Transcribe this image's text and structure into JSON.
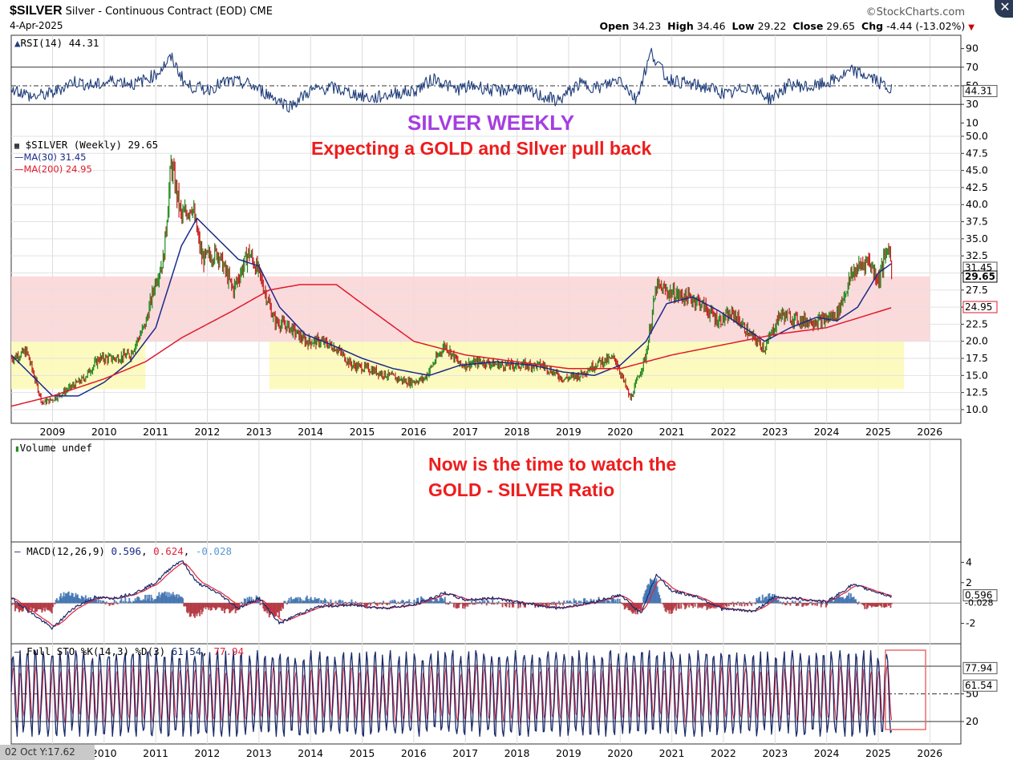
{
  "header": {
    "symbol": "$SILVER",
    "title": "Silver - Continuous Contract (EOD)",
    "exchange": "CME",
    "date": "4-Apr-2025",
    "logo": "©StockCharts.com",
    "open_label": "Open",
    "open": "34.23",
    "high_label": "High",
    "high": "34.46",
    "low_label": "Low",
    "low": "29.22",
    "close_label": "Close",
    "close": "29.65",
    "chg_label": "Chg",
    "chg": "-4.44 (-13.02%)",
    "close_button": "✕"
  },
  "annotations": {
    "title": "SILVER WEEKLY",
    "subtitle": "Expecting a GOLD and SIlver pull back",
    "note_line1": "Now is the time to watch the",
    "note_line2": "GOLD - SILVER Ratio"
  },
  "legends": {
    "rsi": "RSI(14) 44.31",
    "price": "$SILVER (Weekly) 29.65",
    "ma30": "MA(30) 31.45",
    "ma200": "MA(200) 24.95",
    "volume": "Volume undef",
    "macd_label": "MACD(12,26,9)",
    "macd_value": "0.596",
    "macd_signal": "0.624",
    "macd_hist": "-0.028",
    "sto_label": "Full STO %K(14,3) %D(3)",
    "sto_k": "61.54",
    "sto_d": "77.94"
  },
  "footer": {
    "cursor": "02 Oct Y:17.62"
  },
  "colors": {
    "price_up": "#1e8a1e",
    "price_down": "#c41e1e",
    "ma30": "#1a2a8a",
    "ma200": "#e01a2a",
    "resistance_zone": "#fbd6d8",
    "support_zone": "#fdf9b8",
    "rsi_line": "#1f3d7a",
    "macd_line": "#1a2a6a",
    "signal_line": "#e0243a",
    "hist_pos": "#3b6fb0",
    "hist_neg": "#b0303a",
    "sto_k": "#1a2a6a",
    "sto_d": "#e0243a",
    "box": "#ee6a6a"
  },
  "chart_data": {
    "type": "line",
    "title": "SILVER WEEKLY",
    "x_axis": {
      "ticks": [
        "2009",
        "2010",
        "2011",
        "2012",
        "2013",
        "2014",
        "2015",
        "2016",
        "2017",
        "2018",
        "2019",
        "2020",
        "2021",
        "2022",
        "2023",
        "2024",
        "2025",
        "2026"
      ]
    },
    "price_panel": {
      "y_ticks": [
        "50.0",
        "47.5",
        "45.0",
        "42.5",
        "40.0",
        "37.5",
        "35.0",
        "32.5",
        "30.0",
        "27.5",
        "25.0",
        "22.5",
        "20.0",
        "17.5",
        "15.0",
        "12.5",
        "10.0"
      ],
      "ylim": [
        8,
        50
      ],
      "current_value_labels": [
        "31.45",
        "29.65",
        "24.95"
      ],
      "zones": [
        {
          "name": "resistance",
          "y_range": [
            20,
            29.5
          ],
          "x_range": [
            2008.2,
            2026.0
          ]
        },
        {
          "name": "support",
          "y_range": [
            13,
            20
          ],
          "x_range": [
            2008.2,
            2010.8
          ]
        },
        {
          "name": "support",
          "y_range": [
            13,
            20
          ],
          "x_range": [
            2013.2,
            2025.5
          ]
        }
      ],
      "series": [
        {
          "name": "$SILVER (Weekly)",
          "x": [
            2008.2,
            2008.5,
            2008.8,
            2009.0,
            2009.3,
            2009.6,
            2009.9,
            2010.2,
            2010.5,
            2010.8,
            2011.0,
            2011.15,
            2011.3,
            2011.5,
            2011.7,
            2011.9,
            2012.2,
            2012.5,
            2012.8,
            2013.0,
            2013.3,
            2013.6,
            2013.9,
            2014.2,
            2014.5,
            2014.8,
            2015.1,
            2015.5,
            2015.9,
            2016.2,
            2016.6,
            2016.9,
            2017.3,
            2017.7,
            2018.1,
            2018.5,
            2018.9,
            2019.2,
            2019.6,
            2019.9,
            2020.2,
            2020.5,
            2020.7,
            2021.0,
            2021.5,
            2021.9,
            2022.2,
            2022.5,
            2022.8,
            2023.1,
            2023.5,
            2023.9,
            2024.2,
            2024.5,
            2024.8,
            2025.0,
            2025.2,
            2025.27
          ],
          "y": [
            17.5,
            18.5,
            11,
            11.5,
            13,
            14.5,
            17.5,
            17.5,
            18,
            22.5,
            29,
            32,
            46,
            38,
            40,
            32,
            33,
            27.5,
            33,
            30,
            23,
            22,
            20,
            20,
            19,
            16.5,
            16,
            15,
            14,
            14.5,
            19.5,
            16.5,
            17,
            16.5,
            16.5,
            16.5,
            14.5,
            15,
            17,
            17.5,
            11.5,
            18,
            28,
            27,
            26,
            23,
            24,
            21,
            19,
            24,
            23,
            23,
            24,
            30,
            32,
            29,
            34,
            29.65
          ]
        },
        {
          "name": "MA(30)",
          "x": [
            2008.2,
            2009.0,
            2009.5,
            2010.0,
            2010.5,
            2011.0,
            2011.5,
            2011.8,
            2012.2,
            2012.6,
            2013.0,
            2013.4,
            2013.9,
            2014.4,
            2015.0,
            2015.6,
            2016.3,
            2016.9,
            2017.6,
            2018.3,
            2018.9,
            2019.5,
            2020.0,
            2020.5,
            2020.9,
            2021.4,
            2021.9,
            2022.4,
            2022.8,
            2023.3,
            2023.8,
            2024.2,
            2024.6,
            2025.0,
            2025.27
          ],
          "y": [
            18,
            12,
            12,
            14,
            17,
            22,
            34,
            38,
            35,
            32,
            31,
            25,
            21,
            19.5,
            17.5,
            16,
            15,
            16.5,
            17,
            16.5,
            15.5,
            15,
            16.5,
            20,
            25.5,
            26.5,
            24.5,
            22,
            20,
            22,
            23.5,
            23,
            25,
            30,
            31.45
          ]
        },
        {
          "name": "MA(200)",
          "x": [
            2008.2,
            2009.0,
            2010.0,
            2010.8,
            2011.5,
            2012.5,
            2013.2,
            2013.8,
            2014.5,
            2015.0,
            2016.0,
            2017.0,
            2018.0,
            2019.0,
            2020.0,
            2021.0,
            2022.0,
            2023.0,
            2024.0,
            2025.27
          ],
          "y": [
            10.5,
            12,
            14.5,
            17,
            20.5,
            24.5,
            27.5,
            28.3,
            28.3,
            25.5,
            20,
            18,
            17,
            16,
            16,
            18,
            19.5,
            21,
            22,
            24.95
          ]
        }
      ]
    },
    "rsi_panel": {
      "name": "RSI(14)",
      "value": 44.31,
      "y_ticks": [
        "90",
        "70",
        "50",
        "30",
        "10"
      ],
      "ylim": [
        0,
        100
      ],
      "x": [
        2008.2,
        2008.6,
        2009.0,
        2009.4,
        2009.8,
        2010.2,
        2010.6,
        2011.0,
        2011.3,
        2011.6,
        2012.0,
        2012.4,
        2012.8,
        2013.2,
        2013.6,
        2014.0,
        2014.4,
        2014.8,
        2015.2,
        2015.6,
        2016.0,
        2016.4,
        2016.8,
        2017.2,
        2017.6,
        2018.0,
        2018.4,
        2018.8,
        2019.2,
        2019.6,
        2020.0,
        2020.3,
        2020.6,
        2020.9,
        2021.3,
        2021.7,
        2022.1,
        2022.5,
        2022.9,
        2023.3,
        2023.7,
        2024.1,
        2024.5,
        2024.9,
        2025.27
      ],
      "y": [
        48,
        38,
        42,
        55,
        50,
        56,
        52,
        62,
        80,
        50,
        46,
        55,
        52,
        40,
        28,
        45,
        48,
        42,
        36,
        42,
        44,
        58,
        46,
        50,
        44,
        48,
        40,
        34,
        52,
        48,
        58,
        35,
        86,
        58,
        52,
        48,
        40,
        50,
        36,
        52,
        48,
        55,
        66,
        58,
        44.31
      ]
    },
    "macd_panel": {
      "name": "MACD(12,26,9)",
      "macd": 0.596,
      "signal": 0.624,
      "histogram": -0.028,
      "y_ticks": [
        "4",
        "2",
        "-2"
      ],
      "ylim": [
        -4,
        6
      ],
      "x": [
        2008.2,
        2008.6,
        2009.0,
        2009.4,
        2009.8,
        2010.2,
        2010.6,
        2011.0,
        2011.3,
        2011.5,
        2011.8,
        2012.2,
        2012.6,
        2013.0,
        2013.4,
        2013.8,
        2014.2,
        2014.8,
        2015.4,
        2016.0,
        2016.6,
        2017.0,
        2017.6,
        2018.2,
        2018.8,
        2019.4,
        2020.0,
        2020.4,
        2020.7,
        2021.0,
        2021.5,
        2022.0,
        2022.6,
        2023.0,
        2023.5,
        2024.0,
        2024.5,
        2024.9,
        2025.27
      ],
      "y": [
        0.5,
        -1,
        -2.5,
        -0.5,
        0.5,
        0.5,
        1,
        2,
        3.5,
        4.2,
        2,
        1,
        -0.5,
        0.5,
        -2,
        -1,
        -0.3,
        -0.2,
        -0.5,
        -0.2,
        1,
        0.3,
        0.5,
        -0.1,
        -0.5,
        0,
        0.8,
        -1,
        2.8,
        1.2,
        0.6,
        -0.6,
        -0.8,
        0.6,
        0.4,
        0.1,
        1.8,
        1.2,
        0.596
      ]
    },
    "sto_panel": {
      "name": "Full STO %K(14,3) %D(3)",
      "k": 61.54,
      "d": 77.94,
      "y_ticks": [
        "50",
        "20"
      ],
      "ylim": [
        0,
        100
      ]
    }
  }
}
